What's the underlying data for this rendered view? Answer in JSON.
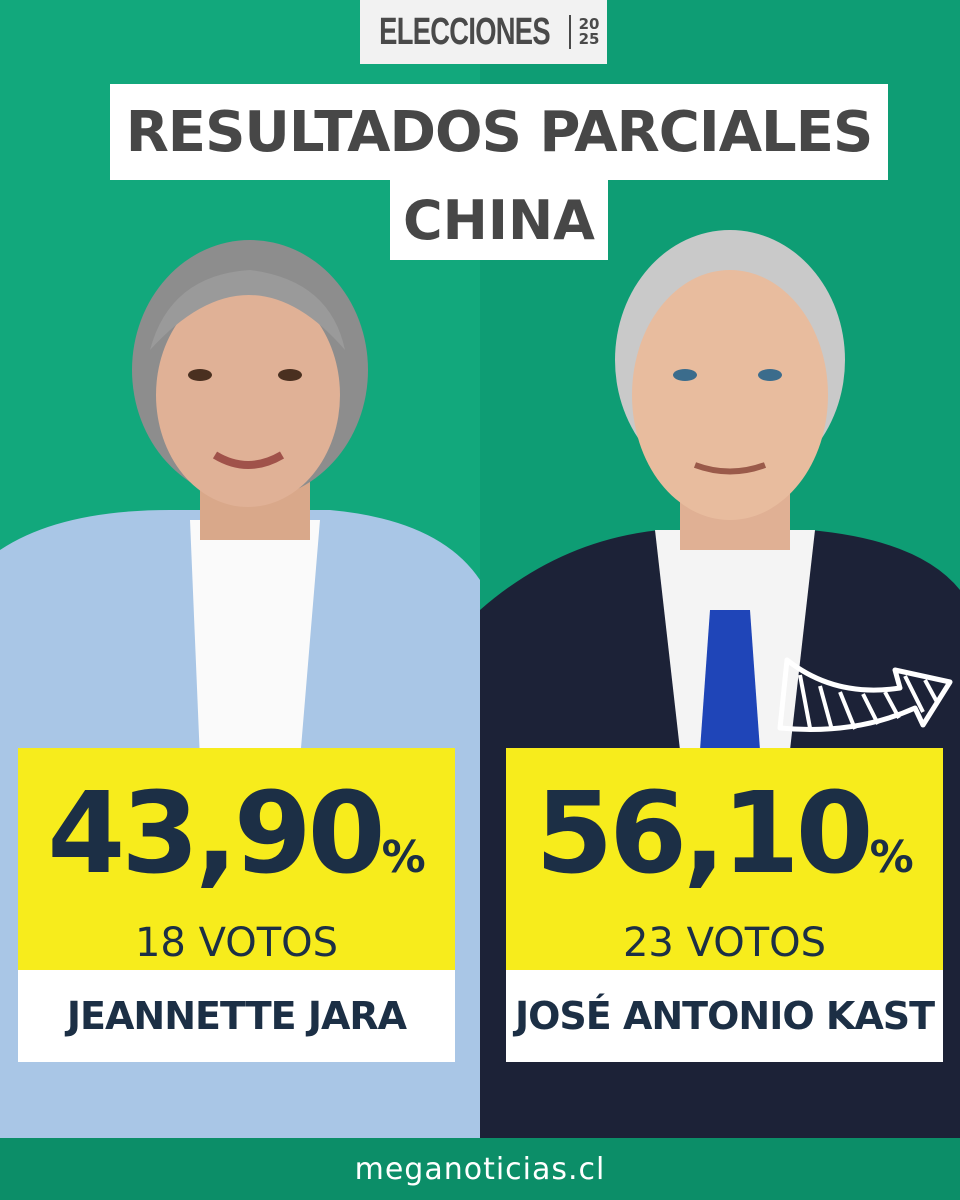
{
  "header": {
    "logo_word": "ELECCIONES",
    "logo_year_top": "20",
    "logo_year_bottom": "25",
    "title": "RESULTADOS PARCIALES",
    "subtitle": "CHINA"
  },
  "candidates": [
    {
      "name": "JEANNETTE JARA",
      "percent": "43,90",
      "percent_sign": "%",
      "votes": "18 VOTOS"
    },
    {
      "name": "JOSÉ ANTONIO KAST",
      "percent": "56,10",
      "percent_sign": "%",
      "votes": "23 VOTOS"
    }
  ],
  "footer": {
    "site": "meganoticias.cl"
  },
  "colors": {
    "background": "#10a67b",
    "highlight": "#f7ec1c",
    "text_navy": "#1c2f45",
    "footer": "#0c8e68"
  }
}
